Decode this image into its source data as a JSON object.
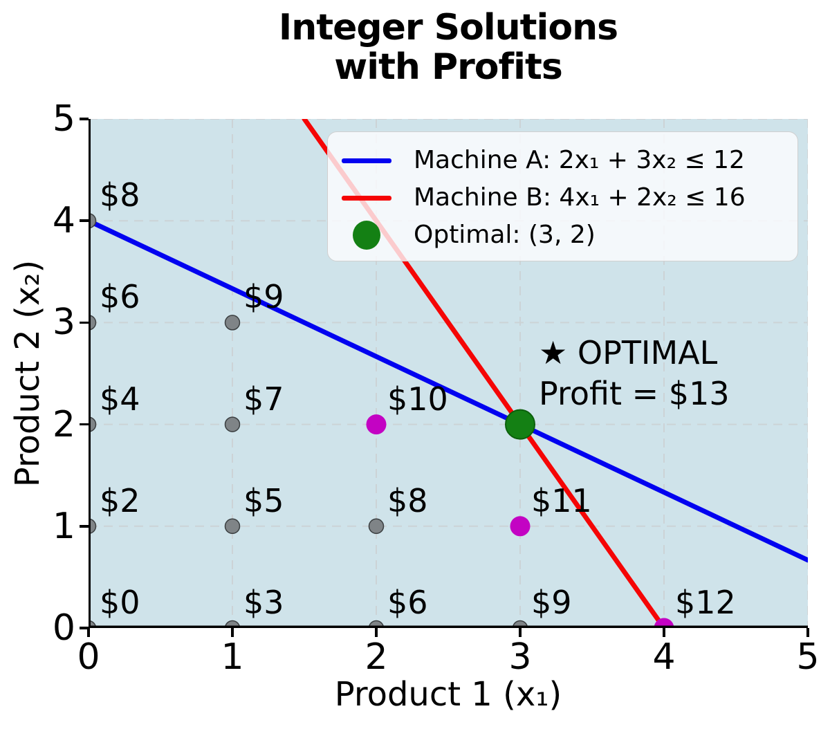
{
  "title": "Integer Solutions\nwith Profits",
  "axes": {
    "xlabel": "Product 1 (x₁)",
    "ylabel": "Product 2 (x₂)",
    "x_ticks": [
      0,
      1,
      2,
      3,
      4,
      5
    ],
    "y_ticks": [
      0,
      1,
      2,
      3,
      4,
      5
    ]
  },
  "chart_data": {
    "type": "scatter",
    "title": "Integer Solutions with Profits",
    "xlabel": "Product 1 (x₁)",
    "ylabel": "Product 2 (x₂)",
    "xlim": [
      0,
      5
    ],
    "ylim": [
      0,
      5
    ],
    "grid": true,
    "background_color": "#cfe3ea",
    "grid_color": "#ccd3d6",
    "lines": [
      {
        "id": "machine-a",
        "label": "Machine A: 2x₁ + 3x₂ ≤ 12",
        "color": "#0202f0",
        "x1": 0,
        "y1": 4,
        "x2": 5,
        "y2": 0.6667
      },
      {
        "id": "machine-b",
        "label": "Machine B: 4x₁ + 2x₂ ≤ 16",
        "color": "#f50505",
        "x1": 1.5,
        "y1": 5,
        "x2": 4,
        "y2": 0
      }
    ],
    "point_styles": {
      "feasible": {
        "color": "#7f8487",
        "stroke": "#3a3e40",
        "stroke_width": 1.5,
        "r": 10.5
      },
      "highlight": {
        "color": "#c303c3",
        "stroke": "none",
        "stroke_width": 0,
        "r": 14.5
      },
      "optimal": {
        "color": "#148014",
        "stroke": "#0c600c",
        "stroke_width": 2,
        "r": 21
      }
    },
    "points": [
      {
        "x": 0,
        "y": 0,
        "label": "$0",
        "type": "feasible"
      },
      {
        "x": 1,
        "y": 0,
        "label": "$3",
        "type": "feasible"
      },
      {
        "x": 2,
        "y": 0,
        "label": "$6",
        "type": "feasible"
      },
      {
        "x": 3,
        "y": 0,
        "label": "$9",
        "type": "feasible"
      },
      {
        "x": 4,
        "y": 0,
        "label": "$12",
        "type": "highlight"
      },
      {
        "x": 0,
        "y": 1,
        "label": "$2",
        "type": "feasible"
      },
      {
        "x": 1,
        "y": 1,
        "label": "$5",
        "type": "feasible"
      },
      {
        "x": 2,
        "y": 1,
        "label": "$8",
        "type": "feasible"
      },
      {
        "x": 3,
        "y": 1,
        "label": "$11",
        "type": "highlight"
      },
      {
        "x": 0,
        "y": 2,
        "label": "$4",
        "type": "feasible"
      },
      {
        "x": 1,
        "y": 2,
        "label": "$7",
        "type": "feasible"
      },
      {
        "x": 2,
        "y": 2,
        "label": "$10",
        "type": "highlight"
      },
      {
        "x": 3,
        "y": 2,
        "label": "",
        "type": "optimal"
      },
      {
        "x": 0,
        "y": 3,
        "label": "$6",
        "type": "feasible"
      },
      {
        "x": 1,
        "y": 3,
        "label": "$9",
        "type": "feasible"
      },
      {
        "x": 0,
        "y": 4,
        "label": "$8",
        "type": "feasible"
      }
    ],
    "legend": {
      "position": "upper right",
      "items": [
        {
          "label": "Machine A: 2x₁ + 3x₂ ≤ 12",
          "marker": "line",
          "color": "#0202f0"
        },
        {
          "label": "Machine B: 4x₁ + 2x₂ ≤ 16",
          "marker": "line",
          "color": "#f50505"
        },
        {
          "label": "Optimal: (3, 2)",
          "marker": "dot",
          "color": "#148014"
        }
      ]
    },
    "annotation": {
      "text": "★ OPTIMAL\nProfit = $13",
      "x": 3.13,
      "y": 2.9
    }
  }
}
